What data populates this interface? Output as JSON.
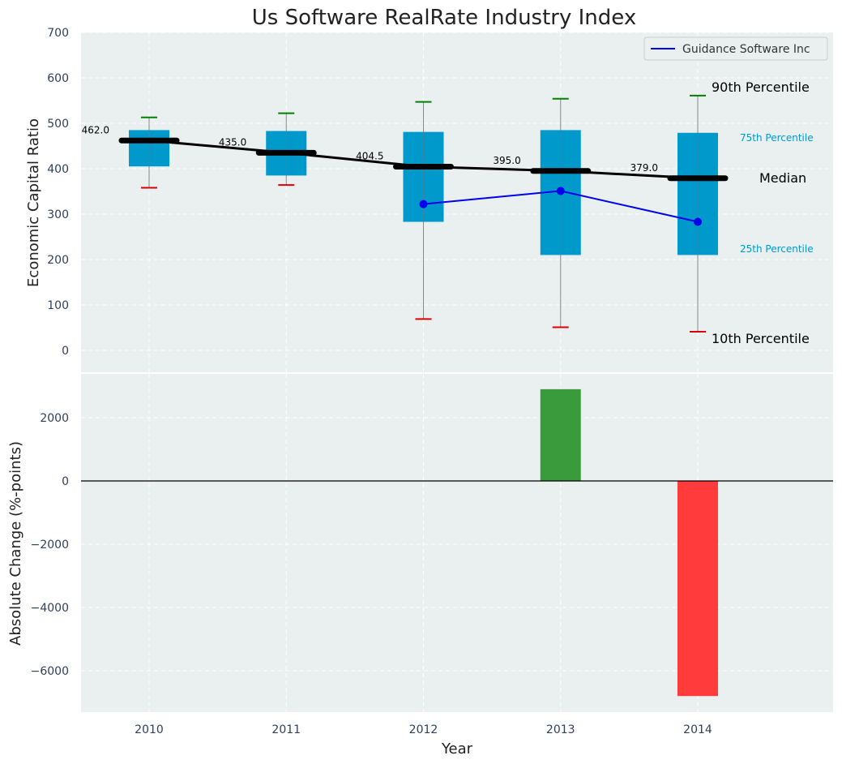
{
  "chart_data": [
    {
      "type": "box",
      "title": "Us Software RealRate Industry Index",
      "xlabel": "",
      "ylabel": "Economic Capital Ratio",
      "ylim": [
        -50,
        700
      ],
      "yticks": [
        0,
        100,
        200,
        300,
        400,
        500,
        600,
        700
      ],
      "categories": [
        "2010",
        "2011",
        "2012",
        "2013",
        "2014"
      ],
      "p10": [
        358,
        364,
        69,
        51,
        41
      ],
      "p25": [
        405,
        385,
        283,
        210,
        210
      ],
      "median": [
        462.0,
        435.0,
        404.5,
        395.0,
        379.0
      ],
      "p75": [
        485,
        483,
        481,
        485,
        479
      ],
      "p90": [
        513,
        522,
        547,
        554,
        561
      ],
      "median_labels": [
        "462.0",
        "435.0",
        "404.5",
        "395.0",
        "379.0"
      ],
      "series": [
        {
          "name": "Guidance Software Inc",
          "x": [
            "2012",
            "2013",
            "2014"
          ],
          "values": [
            322,
            351,
            283
          ],
          "color": "#0000ee"
        }
      ],
      "annotations": {
        "p90": "90th Percentile",
        "p75": "75th Percentile",
        "median": "Median",
        "p25": "25th Percentile",
        "p10": "10th Percentile"
      },
      "colors": {
        "box": "#0099cc",
        "p90_whisker": "#008000",
        "p10_whisker": "#dd0000",
        "median": "#000000",
        "background": "#eaeff0"
      }
    },
    {
      "type": "bar",
      "xlabel": "Year",
      "ylabel": "Absolute Change (%-points)",
      "ylim": [
        -7200,
        3500
      ],
      "yticks": [
        -6000,
        -4000,
        -2000,
        0,
        2000
      ],
      "ytick_labels": [
        "−6000",
        "−4000",
        "−2000",
        "0",
        "2000"
      ],
      "categories": [
        "2010",
        "2011",
        "2012",
        "2013",
        "2014"
      ],
      "values": [
        0,
        0,
        0,
        2900,
        -6800
      ],
      "colors": {
        "positive": "#3a9b3c",
        "negative": "#ff3b3b"
      }
    }
  ]
}
